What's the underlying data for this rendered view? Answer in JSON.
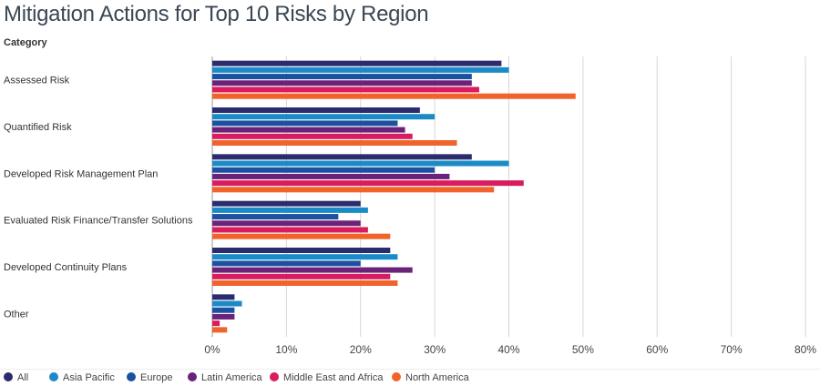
{
  "title": "Mitigation Actions for Top 10 Risks by Region",
  "category_header": "Category",
  "chart_data": {
    "type": "bar",
    "orientation": "horizontal",
    "title": "Mitigation Actions for Top 10 Risks by Region",
    "ylabel": "Category",
    "xlim": [
      0,
      80
    ],
    "x_ticks": [
      "0%",
      "10%",
      "20%",
      "30%",
      "40%",
      "50%",
      "60%",
      "70%",
      "80%"
    ],
    "grid": true,
    "legend": "bottom",
    "categories": [
      "Assessed Risk",
      "Quantified Risk",
      "Developed Risk Management Plan",
      "Evaluated Risk Finance/Transfer Solutions",
      "Developed Continuity Plans",
      "Other"
    ],
    "series": [
      {
        "name": "All",
        "color": "#2b2c6e",
        "values": [
          39,
          28,
          35,
          20,
          24,
          3
        ]
      },
      {
        "name": "Asia Pacific",
        "color": "#1b8bc7",
        "values": [
          40,
          30,
          40,
          21,
          25,
          4
        ]
      },
      {
        "name": "Europe",
        "color": "#1c51a2",
        "values": [
          35,
          25,
          30,
          17,
          20,
          3
        ]
      },
      {
        "name": "Latin America",
        "color": "#6b2279",
        "values": [
          35,
          26,
          32,
          20,
          27,
          3
        ]
      },
      {
        "name": "Middle East and Africa",
        "color": "#d81c5d",
        "values": [
          36,
          27,
          42,
          21,
          24,
          1
        ]
      },
      {
        "name": "North America",
        "color": "#f0632b",
        "values": [
          49,
          33,
          38,
          24,
          25,
          2
        ]
      }
    ]
  }
}
